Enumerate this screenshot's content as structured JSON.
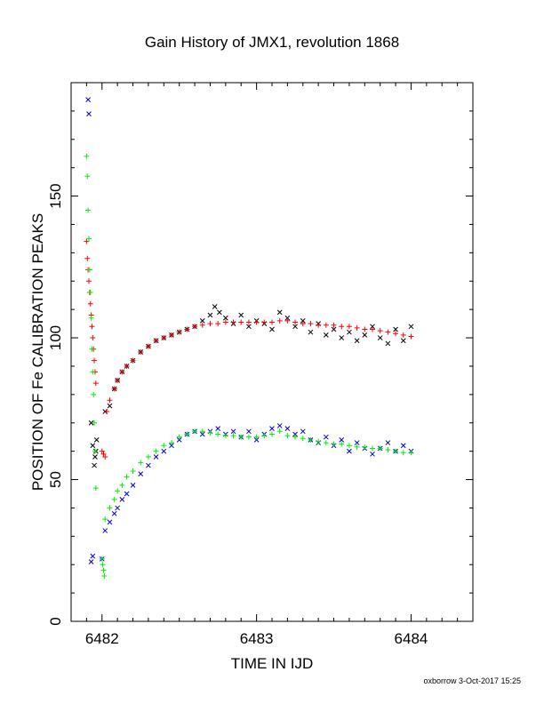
{
  "chart_data": {
    "type": "scatter",
    "title": "Gain History of JMX1, revolution 1868",
    "xlabel": "TIME IN IJD",
    "ylabel": "POSITION OF Fe CALIBRATION PEAKS",
    "xlim": [
      6481.8,
      6484.4
    ],
    "ylim": [
      0,
      190
    ],
    "x_ticks": [
      6482,
      6483,
      6484
    ],
    "y_ticks": [
      0,
      50,
      100,
      150
    ],
    "grid": false,
    "footer": "oxborrow 3-Oct-2017 15:25",
    "colors": {
      "black": "#000000",
      "red": "#ff0000",
      "blue": "#0000cc",
      "green": "#00ee00"
    },
    "series": [
      {
        "marker": "x",
        "color": "#000000",
        "x": [
          6481.93,
          6481.94,
          6481.95,
          6481.955,
          6481.96,
          6481.965,
          6482.02,
          6482.05,
          6482.08,
          6482.1,
          6482.13,
          6482.16,
          6482.2,
          6482.25,
          6482.3,
          6482.35,
          6482.4,
          6482.45,
          6482.5,
          6482.55,
          6482.6,
          6482.65,
          6482.7,
          6482.73,
          6482.76,
          6482.8,
          6482.85,
          6482.9,
          6482.95,
          6483.0,
          6483.05,
          6483.1,
          6483.15,
          6483.2,
          6483.25,
          6483.3,
          6483.35,
          6483.4,
          6483.45,
          6483.5,
          6483.55,
          6483.6,
          6483.65,
          6483.7,
          6483.75,
          6483.8,
          6483.85,
          6483.9,
          6483.95,
          6484.0
        ],
        "y": [
          70,
          62,
          55,
          58,
          60,
          64,
          74,
          76,
          82,
          85,
          88,
          90,
          92,
          95,
          97,
          99,
          100,
          101,
          102,
          103,
          104,
          106,
          108,
          111,
          109,
          107,
          105,
          108,
          104,
          106,
          105,
          103,
          109,
          107,
          104,
          106,
          102,
          105,
          101,
          103,
          100,
          102,
          99,
          101,
          104,
          100,
          98,
          103,
          99,
          104
        ]
      },
      {
        "name": "",
        "marker": "+",
        "color": "#ff0000",
        "x": [
          6481.9,
          6481.905,
          6481.91,
          6481.915,
          6481.92,
          6481.925,
          6481.93,
          6481.935,
          6481.94,
          6481.945,
          6481.95,
          6481.955,
          6481.96,
          6482.0,
          6482.01,
          6482.02,
          6482.03,
          6482.05,
          6482.08,
          6482.1,
          6482.13,
          6482.16,
          6482.2,
          6482.25,
          6482.3,
          6482.35,
          6482.4,
          6482.45,
          6482.5,
          6482.55,
          6482.6,
          6482.65,
          6482.7,
          6482.75,
          6482.8,
          6482.85,
          6482.9,
          6482.95,
          6483.0,
          6483.05,
          6483.1,
          6483.15,
          6483.2,
          6483.25,
          6483.3,
          6483.35,
          6483.4,
          6483.45,
          6483.5,
          6483.55,
          6483.6,
          6483.65,
          6483.7,
          6483.75,
          6483.8,
          6483.85,
          6483.9,
          6483.95,
          6484.0
        ],
        "y": [
          134,
          128,
          124,
          120,
          116,
          112,
          108,
          104,
          100,
          96,
          92,
          88,
          84,
          60,
          59,
          58,
          74,
          78,
          82,
          85,
          88,
          90,
          92,
          95,
          97,
          99,
          100,
          101,
          102,
          103,
          104,
          104.5,
          105,
          105,
          105.5,
          105.5,
          105.5,
          105.5,
          105.5,
          105.5,
          105.5,
          106,
          106,
          105.5,
          105,
          105,
          104.5,
          104.5,
          104.5,
          104,
          104,
          103.5,
          103,
          103,
          102.5,
          102,
          101.5,
          101,
          100.5
        ]
      },
      {
        "name": "",
        "marker": "x",
        "color": "#0000cc",
        "x": [
          6481.91,
          6481.915,
          6481.93,
          6481.94,
          6482.0,
          6482.02,
          6482.05,
          6482.08,
          6482.1,
          6482.13,
          6482.16,
          6482.2,
          6482.25,
          6482.3,
          6482.35,
          6482.4,
          6482.45,
          6482.5,
          6482.55,
          6482.6,
          6482.65,
          6482.7,
          6482.75,
          6482.8,
          6482.85,
          6482.9,
          6482.95,
          6483.0,
          6483.05,
          6483.1,
          6483.15,
          6483.2,
          6483.25,
          6483.3,
          6483.35,
          6483.4,
          6483.45,
          6483.5,
          6483.55,
          6483.6,
          6483.65,
          6483.7,
          6483.75,
          6483.8,
          6483.85,
          6483.9,
          6483.95,
          6484.0
        ],
        "y": [
          184,
          179,
          21,
          23,
          22,
          32,
          35,
          38,
          40,
          43,
          45,
          48,
          52,
          55,
          58,
          60,
          62,
          64,
          66,
          67,
          66,
          67,
          68,
          66,
          67,
          65,
          67,
          64,
          66,
          68,
          69,
          68,
          66,
          67,
          64,
          63,
          65,
          62,
          64,
          60,
          63,
          61,
          59,
          61,
          63,
          60,
          62,
          60
        ]
      },
      {
        "name": "",
        "marker": "+",
        "color": "#00ee00",
        "x": [
          6481.9,
          6481.905,
          6481.91,
          6481.915,
          6481.92,
          6481.925,
          6481.93,
          6481.935,
          6481.94,
          6481.945,
          6481.95,
          6481.955,
          6481.96,
          6482.0,
          6482.005,
          6482.01,
          6482.015,
          6482.02,
          6482.05,
          6482.08,
          6482.1,
          6482.13,
          6482.16,
          6482.2,
          6482.25,
          6482.3,
          6482.35,
          6482.4,
          6482.45,
          6482.5,
          6482.55,
          6482.6,
          6482.65,
          6482.7,
          6482.75,
          6482.8,
          6482.85,
          6482.9,
          6482.95,
          6483.0,
          6483.05,
          6483.1,
          6483.15,
          6483.2,
          6483.25,
          6483.3,
          6483.35,
          6483.4,
          6483.45,
          6483.5,
          6483.55,
          6483.6,
          6483.65,
          6483.7,
          6483.75,
          6483.8,
          6483.85,
          6483.9,
          6483.95,
          6484.0
        ],
        "y": [
          164,
          157,
          145,
          135,
          124,
          116,
          107,
          96,
          88,
          80,
          70,
          60,
          47,
          22,
          20,
          18,
          16,
          36,
          40,
          43,
          46,
          48,
          51,
          53,
          56,
          58,
          60,
          62,
          63,
          65,
          66,
          67,
          67,
          66.5,
          66,
          65.5,
          65.5,
          65,
          65,
          65,
          65.5,
          66,
          67,
          65.5,
          65,
          64.5,
          64,
          63.5,
          63,
          62.5,
          62.5,
          62,
          61.5,
          61.5,
          61,
          61,
          60.5,
          60,
          59.5,
          59.5
        ]
      }
    ]
  }
}
